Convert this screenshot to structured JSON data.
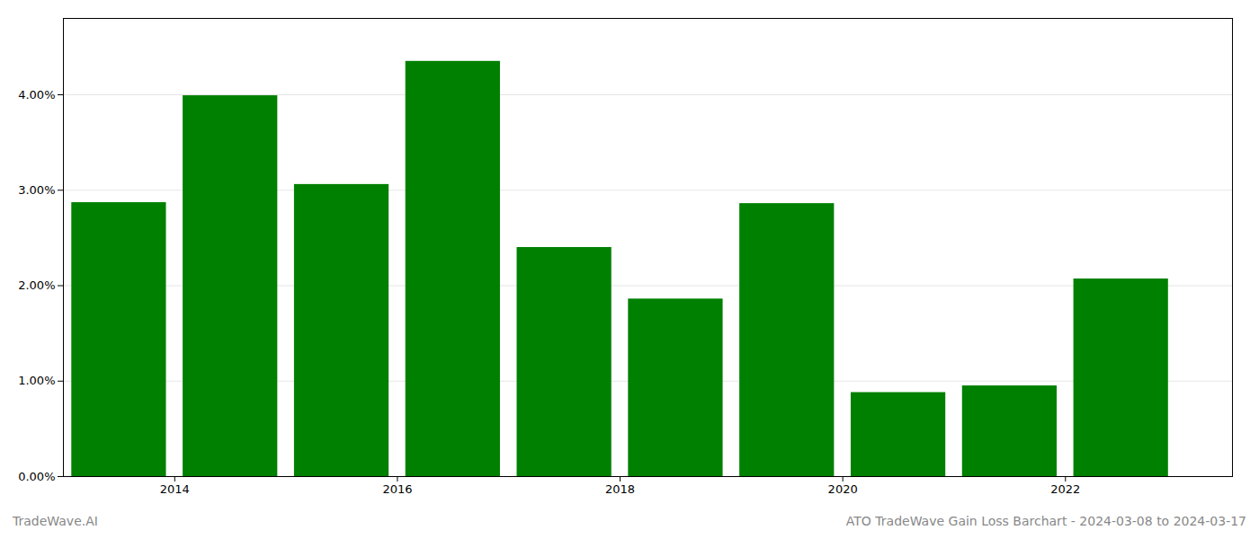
{
  "chart_data": {
    "type": "bar",
    "title": "ATO TradeWave Gain Loss Barchart - 2024-03-08 to 2024-03-17",
    "annotations": [
      "TradeWave.AI"
    ],
    "x": [
      2013.5,
      2014.5,
      2015.5,
      2016.5,
      2017.5,
      2018.5,
      2019.5,
      2020.5,
      2021.5,
      2022.5
    ],
    "values": [
      0.0287,
      0.0399,
      0.0306,
      0.0435,
      0.024,
      0.0186,
      0.0286,
      0.0088,
      0.0095,
      0.0207
    ],
    "color": "#008000",
    "xlim": [
      2013.0,
      2023.5
    ],
    "xticks": [
      2014,
      2016,
      2018,
      2020,
      2022
    ],
    "ylim": [
      0,
      0.048
    ],
    "yticks": [
      {
        "value": 0.0,
        "label": "0.00%"
      },
      {
        "value": 0.01,
        "label": "1.00%"
      },
      {
        "value": 0.02,
        "label": "2.00%"
      },
      {
        "value": 0.03,
        "label": "3.00%"
      },
      {
        "value": 0.04,
        "label": "4.00%"
      }
    ],
    "grid": true
  }
}
